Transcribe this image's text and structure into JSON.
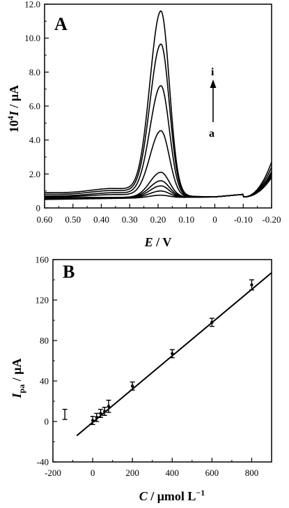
{
  "chart_data": [
    {
      "panel": "A",
      "type": "line",
      "xlabel_italic": "E",
      "xlabel_unit": " / V",
      "ylabel_prefix": "10",
      "ylabel_sup": "4",
      "ylabel_italic": "I",
      "ylabel_unit": " / μA",
      "xlim": [
        0.6,
        -0.2
      ],
      "ylim": [
        0,
        12
      ],
      "x_ticks": [
        0.6,
        0.5,
        0.4,
        0.3,
        0.2,
        0.1,
        0,
        -0.1,
        -0.2
      ],
      "x_tick_labels": [
        "0.60",
        "0.50",
        "0.40",
        "0.30",
        "0.20",
        "0.10",
        "0",
        "-0.10",
        "-0.20"
      ],
      "y_ticks": [
        0,
        2,
        4,
        6,
        8,
        10,
        12
      ],
      "y_tick_labels": [
        "0",
        "2.0",
        "4.0",
        "6.0",
        "8.0",
        "10.0",
        "12.0"
      ],
      "peak_potential": 0.19,
      "series": [
        {
          "base_start": 0.5,
          "peak": 0.75,
          "base_end": 0.65,
          "tail": 1.8
        },
        {
          "base_start": 0.55,
          "peak": 1.0,
          "base_end": 0.65,
          "tail": 1.85
        },
        {
          "base_start": 0.55,
          "peak": 1.3,
          "base_end": 0.65,
          "tail": 1.9
        },
        {
          "base_start": 0.6,
          "peak": 1.6,
          "base_end": 0.65,
          "tail": 1.95
        },
        {
          "base_start": 0.6,
          "peak": 2.1,
          "base_end": 0.65,
          "tail": 2.0
        },
        {
          "base_start": 0.65,
          "peak": 4.55,
          "base_end": 0.65,
          "tail": 2.05
        },
        {
          "base_start": 0.7,
          "peak": 7.2,
          "base_end": 0.65,
          "tail": 2.15
        },
        {
          "base_start": 0.8,
          "peak": 9.65,
          "base_end": 0.65,
          "tail": 2.4
        },
        {
          "base_start": 0.9,
          "peak": 11.6,
          "base_end": 0.65,
          "tail": 2.7
        }
      ],
      "annotation_top": "i",
      "annotation_bottom": "a"
    },
    {
      "panel": "B",
      "type": "scatter",
      "xlabel_italic": "C",
      "xlabel_unit": " / μmol L",
      "xlabel_sup": "−1",
      "ylabel_italic": "I",
      "ylabel_sub": "pa",
      "ylabel_unit": " / μA",
      "xlim": [
        -200,
        900
      ],
      "ylim": [
        -40,
        160
      ],
      "x_ticks": [
        -200,
        0,
        200,
        400,
        600,
        800
      ],
      "x_tick_labels": [
        "-200",
        "0",
        "200",
        "400",
        "600",
        "800"
      ],
      "y_ticks": [
        -40,
        0,
        40,
        80,
        120,
        160
      ],
      "y_tick_labels": [
        "-40",
        "0",
        "40",
        "80",
        "120",
        "160"
      ],
      "points": [
        {
          "x": 0,
          "y": 1,
          "err": 4
        },
        {
          "x": 20,
          "y": 4,
          "err": 4
        },
        {
          "x": 40,
          "y": 8,
          "err": 4
        },
        {
          "x": 60,
          "y": 10,
          "err": 4
        },
        {
          "x": 80,
          "y": 15,
          "err": 6
        },
        {
          "x": 200,
          "y": 35,
          "err": 4
        },
        {
          "x": 400,
          "y": 67,
          "err": 4
        },
        {
          "x": 600,
          "y": 98,
          "err": 4
        },
        {
          "x": 800,
          "y": 135,
          "err": 5
        }
      ],
      "fit_line": {
        "x": [
          -80,
          900
        ],
        "y": [
          -14,
          147
        ]
      },
      "outlier_errorbar": {
        "x": -140,
        "y": 7,
        "err": 5
      }
    }
  ]
}
